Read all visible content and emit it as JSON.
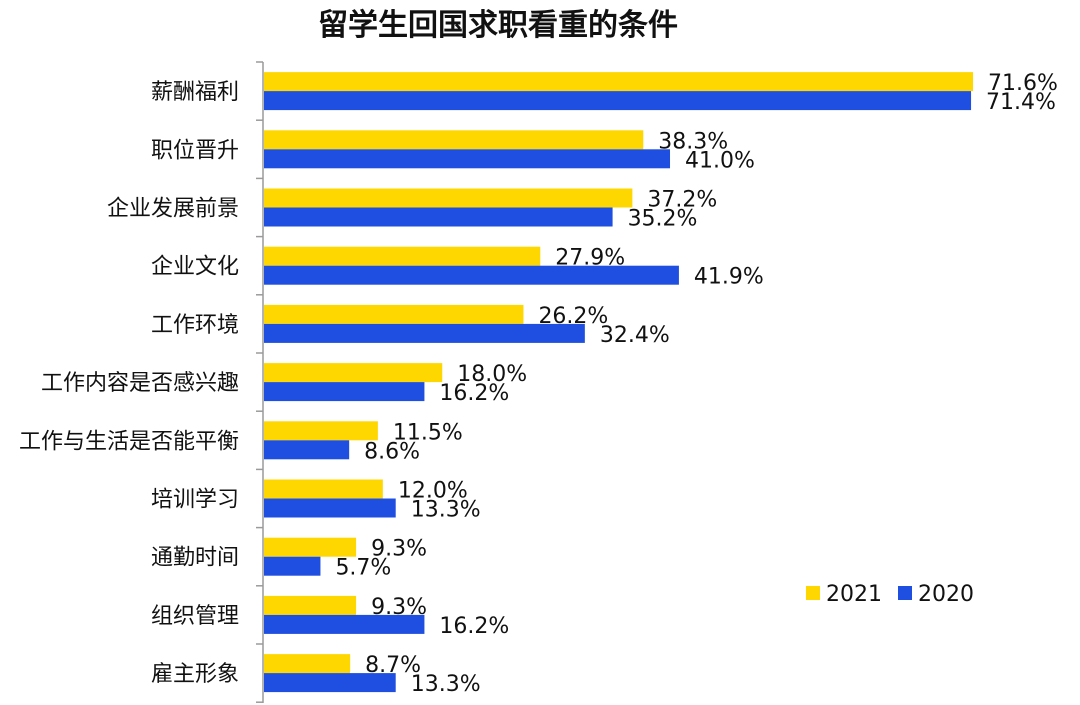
{
  "chart_data": {
    "type": "bar",
    "orientation": "horizontal",
    "title": "留学生回国求职看重的条件",
    "categories": [
      "薪酬福利",
      "职位晋升",
      "企业发展前景",
      "企业文化",
      "工作环境",
      "工作内容是否感兴趣",
      "工作与生活是否能平衡",
      "培训学习",
      "通勤时间",
      "组织管理",
      "雇主形象"
    ],
    "series": [
      {
        "name": "2021",
        "color": "#FFD700",
        "values": [
          71.6,
          38.3,
          37.2,
          27.9,
          26.2,
          18.0,
          11.5,
          12.0,
          9.3,
          9.3,
          8.7
        ],
        "labels": [
          "71.6%",
          "38.3%",
          "37.2%",
          "27.9%",
          "26.2%",
          "18.0%",
          "11.5%",
          "12.0%",
          "9.3%",
          "9.3%",
          "8.7%"
        ]
      },
      {
        "name": "2020",
        "color": "#1F4FE0",
        "values": [
          71.4,
          41.0,
          35.2,
          41.9,
          32.4,
          16.2,
          8.6,
          13.3,
          5.7,
          16.2,
          13.3
        ],
        "labels": [
          "71.4%",
          "41.0%",
          "35.2%",
          "41.9%",
          "32.4%",
          "16.2%",
          "8.6%",
          "13.3%",
          "5.7%",
          "16.2%",
          "13.3%"
        ]
      }
    ],
    "xlim": [
      0,
      72
    ],
    "legend_position": "right",
    "grid": false
  }
}
